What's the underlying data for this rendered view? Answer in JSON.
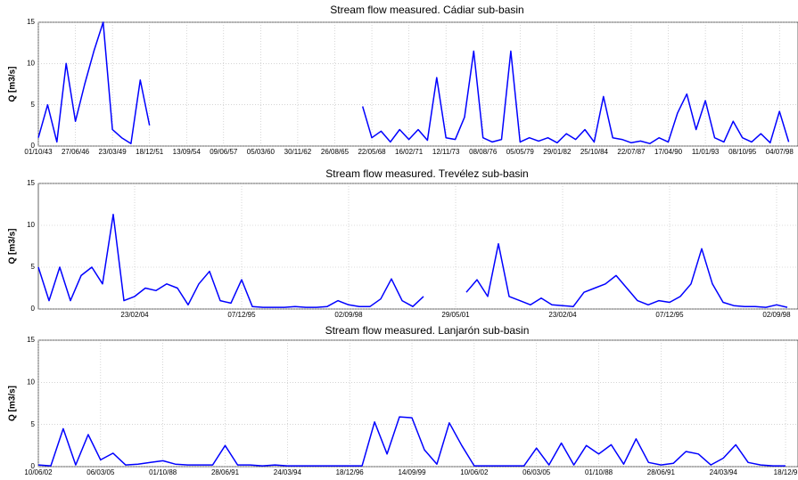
{
  "chart_data": [
    {
      "type": "line",
      "title": "Stream flow measured. Cádiar sub-basin",
      "y_label": "Q [m3/s]",
      "categories": [
        "01/10/43",
        null,
        null,
        null,
        "27/06/46",
        null,
        null,
        null,
        "23/03/49",
        null,
        null,
        null,
        "18/12/51",
        null,
        null,
        null,
        "13/09/54",
        null,
        null,
        null,
        "09/06/57",
        null,
        null,
        null,
        "05/03/60",
        null,
        null,
        null,
        "30/11/62",
        null,
        null,
        null,
        "26/08/65",
        null,
        null,
        null,
        "22/05/68",
        null,
        null,
        null,
        "16/02/71",
        null,
        null,
        null,
        "12/11/73",
        null,
        null,
        null,
        "08/08/76",
        null,
        null,
        null,
        "05/05/79",
        null,
        null,
        null,
        "29/01/82",
        null,
        null,
        null,
        "25/10/84",
        null,
        null,
        null,
        "22/07/87",
        null,
        null,
        null,
        "17/04/90",
        null,
        null,
        null,
        "11/01/93",
        null,
        null,
        null,
        "08/10/95",
        null,
        null,
        null,
        "04/07/98",
        null
      ],
      "series": [
        {
          "color": "#0000ff",
          "values": [
            1,
            5,
            0.5,
            10,
            3,
            7.5,
            11.5,
            15,
            2,
            1,
            0.3,
            8,
            2.5,
            null,
            null,
            null,
            null,
            null,
            null,
            null,
            null,
            null,
            null,
            null,
            null,
            null,
            null,
            null,
            null,
            null,
            null,
            null,
            null,
            null,
            null,
            4.8,
            1,
            1.8,
            0.5,
            2,
            0.8,
            2,
            0.7,
            8.3,
            1,
            0.8,
            3.5,
            11.5,
            1,
            0.5,
            0.8,
            11.5,
            0.5,
            1,
            0.6,
            1,
            0.4,
            1.5,
            0.8,
            2,
            0.5,
            6,
            1,
            0.8,
            0.4,
            0.6,
            0.3,
            1,
            0.5,
            4,
            6.3,
            2,
            5.5,
            1,
            0.5,
            3,
            1,
            0.5,
            1.5,
            0.4,
            4.2,
            0.5
          ]
        }
      ],
      "ylim": [
        0,
        15
      ],
      "yticks": [
        0,
        5,
        10,
        15
      ],
      "grid": true
    },
    {
      "type": "line",
      "title": "Stream flow measured. Trevélez sub-basin",
      "y_label": "Q [m3/s]",
      "categories": [
        null,
        null,
        null,
        null,
        null,
        null,
        null,
        null,
        null,
        "23/02/04",
        null,
        null,
        null,
        null,
        null,
        null,
        null,
        null,
        null,
        "07/12/95",
        null,
        null,
        null,
        null,
        null,
        null,
        null,
        null,
        null,
        "02/09/98",
        null,
        null,
        null,
        null,
        null,
        null,
        null,
        null,
        null,
        "29/05/01",
        null,
        null,
        null,
        null,
        null,
        null,
        null,
        null,
        null,
        "23/02/04",
        null,
        null,
        null,
        null,
        null,
        null,
        null,
        null,
        null,
        "07/12/95",
        null,
        null,
        null,
        null,
        null,
        null,
        null,
        null,
        null,
        "02/09/98",
        null
      ],
      "series": [
        {
          "color": "#0000ff",
          "values": [
            5,
            1,
            5,
            1,
            4,
            5,
            3,
            11.3,
            1,
            1.5,
            2.5,
            2.2,
            3,
            2.5,
            0.5,
            3,
            4.5,
            1,
            0.7,
            3.5,
            0.3,
            0.2,
            0.2,
            0.2,
            0.3,
            0.2,
            0.2,
            0.3,
            1,
            0.5,
            0.3,
            0.3,
            1.2,
            3.6,
            1,
            0.3,
            1.5,
            null,
            null,
            null,
            2,
            3.5,
            1.5,
            7.8,
            1.5,
            1,
            0.5,
            1.3,
            0.5,
            0.4,
            0.3,
            2,
            2.5,
            3,
            4,
            2.5,
            1,
            0.5,
            1,
            0.8,
            1.5,
            3,
            7.2,
            3,
            0.8,
            0.4,
            0.3,
            0.3,
            0.2,
            0.5,
            0.2
          ]
        }
      ],
      "ylim": [
        0,
        15
      ],
      "yticks": [
        0,
        5,
        10,
        15
      ],
      "grid": true
    },
    {
      "type": "line",
      "title": "Stream flow measured. Lanjarón sub-basin",
      "y_label": "Q [m3/s]",
      "categories": [
        "10/06/02",
        null,
        null,
        null,
        null,
        "06/03/05",
        null,
        null,
        null,
        null,
        "01/10/88",
        null,
        null,
        null,
        null,
        "28/06/91",
        null,
        null,
        null,
        null,
        "24/03/94",
        null,
        null,
        null,
        null,
        "18/12/96",
        null,
        null,
        null,
        null,
        "14/09/99",
        null,
        null,
        null,
        null,
        "10/06/02",
        null,
        null,
        null,
        null,
        "06/03/05",
        null,
        null,
        null,
        null,
        "01/10/88",
        null,
        null,
        null,
        null,
        "28/06/91",
        null,
        null,
        null,
        null,
        "24/03/94",
        null,
        null,
        null,
        null,
        "18/12/9"
      ],
      "series": [
        {
          "color": "#0000ff",
          "values": [
            0.2,
            0.1,
            4.5,
            0.2,
            3.8,
            0.8,
            1.6,
            0.2,
            0.3,
            0.5,
            0.7,
            0.3,
            0.2,
            0.2,
            0.2,
            2.5,
            0.2,
            0.2,
            0.1,
            0.2,
            0.1,
            0.1,
            0.1,
            0.1,
            0.1,
            0.1,
            0.1,
            5.3,
            1.5,
            5.9,
            5.8,
            2,
            0.3,
            5.2,
            2.5,
            0.1,
            0.1,
            0.1,
            0.1,
            0.1,
            2.2,
            0.2,
            2.8,
            0.2,
            2.5,
            1.5,
            2.6,
            0.3,
            3.3,
            0.5,
            0.2,
            0.4,
            1.8,
            1.5,
            0.2,
            1,
            2.6,
            0.5,
            0.2,
            0.1,
            0.1
          ]
        }
      ],
      "ylim": [
        0,
        15
      ],
      "yticks": [
        0,
        5,
        10,
        15
      ],
      "grid": true
    }
  ]
}
